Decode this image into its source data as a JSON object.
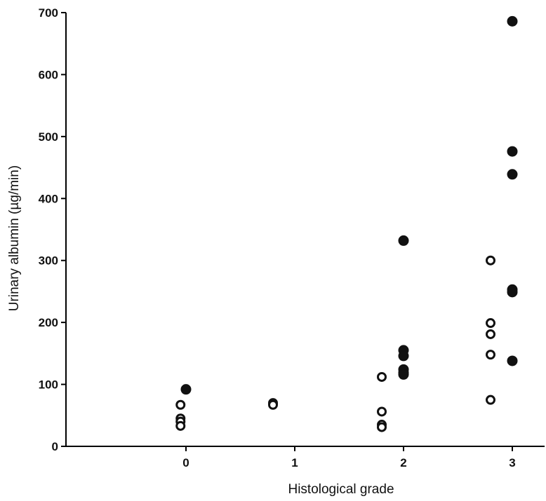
{
  "chart_data": {
    "type": "scatter",
    "title": "",
    "xlabel": "Histological grade",
    "ylabel": "Urinary albumin (µg/min)",
    "xlim": [
      -1,
      3.1
    ],
    "ylim": [
      0,
      700
    ],
    "x_ticks": [
      0,
      1,
      2,
      3
    ],
    "y_ticks": [
      0,
      100,
      200,
      300,
      400,
      500,
      600,
      700
    ],
    "grid": false,
    "legend": "none",
    "series": [
      {
        "marker": "open-circle",
        "color": "#111111",
        "points": [
          {
            "x": -0.05,
            "y": 67
          },
          {
            "x": -0.05,
            "y": 45
          },
          {
            "x": -0.05,
            "y": 40
          },
          {
            "x": -0.05,
            "y": 33
          },
          {
            "x": 0.8,
            "y": 70
          },
          {
            "x": 0.8,
            "y": 67
          },
          {
            "x": 1.8,
            "y": 112
          },
          {
            "x": 1.8,
            "y": 56
          },
          {
            "x": 1.8,
            "y": 35
          },
          {
            "x": 1.8,
            "y": 31
          },
          {
            "x": 2.8,
            "y": 300
          },
          {
            "x": 2.8,
            "y": 199
          },
          {
            "x": 2.8,
            "y": 181
          },
          {
            "x": 2.8,
            "y": 148
          },
          {
            "x": 2.8,
            "y": 75
          }
        ]
      },
      {
        "marker": "filled-circle",
        "color": "#111111",
        "points": [
          {
            "x": 0.0,
            "y": 92
          },
          {
            "x": 2.0,
            "y": 332
          },
          {
            "x": 2.0,
            "y": 155
          },
          {
            "x": 2.0,
            "y": 146
          },
          {
            "x": 2.0,
            "y": 124
          },
          {
            "x": 2.0,
            "y": 119
          },
          {
            "x": 2.0,
            "y": 116
          },
          {
            "x": 3.0,
            "y": 686
          },
          {
            "x": 3.0,
            "y": 476
          },
          {
            "x": 3.0,
            "y": 439
          },
          {
            "x": 3.0,
            "y": 253
          },
          {
            "x": 3.0,
            "y": 249
          },
          {
            "x": 3.0,
            "y": 138
          }
        ]
      }
    ]
  }
}
